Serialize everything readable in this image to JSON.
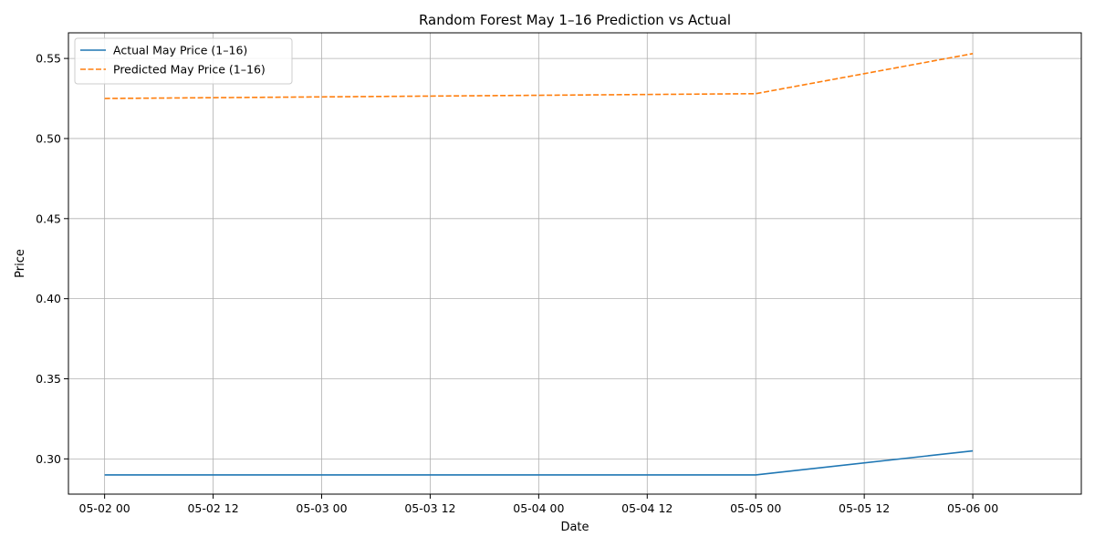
{
  "chart_data": {
    "type": "line",
    "title": "Random Forest May 1–16 Prediction vs Actual",
    "xlabel": "Date",
    "ylabel": "Price",
    "x": [
      "2025-05-02T00:00",
      "2025-05-05T00:00",
      "2025-05-06T00:00"
    ],
    "xlim": [
      "2025-05-01T20:00",
      "2025-05-06T12:00"
    ],
    "ylim": [
      0.278,
      0.566
    ],
    "xticks": [
      "05-02 00",
      "05-02 12",
      "05-03 00",
      "05-03 12",
      "05-04 00",
      "05-04 12",
      "05-05 00",
      "05-05 12",
      "05-06 00"
    ],
    "yticks": [
      "0.30",
      "0.35",
      "0.40",
      "0.45",
      "0.50",
      "0.55"
    ],
    "grid": true,
    "legend": "upper-left",
    "series": [
      {
        "name": "Actual May Price (1–16)",
        "values": [
          0.29,
          0.29,
          0.305
        ],
        "color": "#1f77b4",
        "style": "solid"
      },
      {
        "name": "Predicted May Price (1–16)",
        "values": [
          0.525,
          0.528,
          0.553
        ],
        "color": "#ff7f0e",
        "style": "dashed"
      }
    ]
  }
}
